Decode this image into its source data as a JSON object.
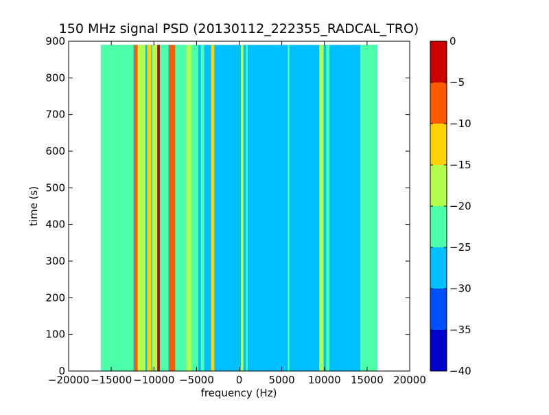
{
  "chart_data": {
    "type": "heatmap",
    "title": "150 MHz signal PSD (20130112_222355_RADCAL_TRO)",
    "xlabel": "frequency (Hz)",
    "ylabel": "time (s)",
    "xlim": [
      -20000,
      20000
    ],
    "ylim": [
      0,
      900
    ],
    "x_ticks": [
      -20000,
      -15000,
      -10000,
      -5000,
      0,
      5000,
      10000,
      15000,
      20000
    ],
    "x_tick_labels": [
      "−20000",
      "−15000",
      "−10000",
      "−5000",
      "0",
      "5000",
      "10000",
      "15000",
      "20000"
    ],
    "y_ticks": [
      0,
      100,
      200,
      300,
      400,
      500,
      600,
      700,
      800,
      900
    ],
    "y_tick_labels": [
      "0",
      "100",
      "200",
      "300",
      "400",
      "500",
      "600",
      "700",
      "800",
      "900"
    ],
    "data_extent": {
      "x": [
        -16200,
        16200
      ],
      "y": [
        0,
        890
      ]
    },
    "background_level": -27.5,
    "colorbar": {
      "levels": [
        -40,
        -35,
        -30,
        -25,
        -20,
        -15,
        -10,
        -5,
        0
      ],
      "tick_labels": [
        "−40",
        "−35",
        "−30",
        "−25",
        "−20",
        "−15",
        "−10",
        "−5",
        "0"
      ],
      "colors": [
        "#0000cd",
        "#0050ff",
        "#00bfff",
        "#4cffa8",
        "#b2ff4c",
        "#ffd200",
        "#ff5a00",
        "#cc0000"
      ]
    },
    "bands": [
      {
        "x_start": -16200,
        "x_end": -14000,
        "level": -22.5
      },
      {
        "x_start": -14000,
        "x_end": -12400,
        "level": -20.0
      },
      {
        "x_start": -12300,
        "x_end": -11900,
        "level": -7.5
      },
      {
        "x_start": -11900,
        "x_end": -11000,
        "level": -17.5
      },
      {
        "x_start": -10800,
        "x_end": -10300,
        "level": -12.5
      },
      {
        "x_start": -10200,
        "x_end": -9600,
        "level": -17.5
      },
      {
        "x_start": -9600,
        "x_end": -9300,
        "level": -2.5
      },
      {
        "x_start": -9300,
        "x_end": -8300,
        "level": -22.5
      },
      {
        "x_start": -8200,
        "x_end": -7500,
        "level": -7.5
      },
      {
        "x_start": -7500,
        "x_end": -6200,
        "level": -22.5
      },
      {
        "x_start": -6200,
        "x_end": -5600,
        "level": -17.5
      },
      {
        "x_start": -5600,
        "x_end": -4800,
        "level": -22.5
      },
      {
        "x_start": -4500,
        "x_end": -4100,
        "level": -22.5
      },
      {
        "x_start": -3300,
        "x_end": -2900,
        "level": -12.5
      },
      {
        "x_start": 200,
        "x_end": 500,
        "level": -17.5
      },
      {
        "x_start": 800,
        "x_end": 1000,
        "level": -22.5
      },
      {
        "x_start": 5700,
        "x_end": 5900,
        "level": -22.5
      },
      {
        "x_start": 9400,
        "x_end": 9900,
        "level": -17.5
      },
      {
        "x_start": 10200,
        "x_end": 10600,
        "level": -22.5
      },
      {
        "x_start": 14200,
        "x_end": 16200,
        "level": -22.5
      }
    ]
  }
}
